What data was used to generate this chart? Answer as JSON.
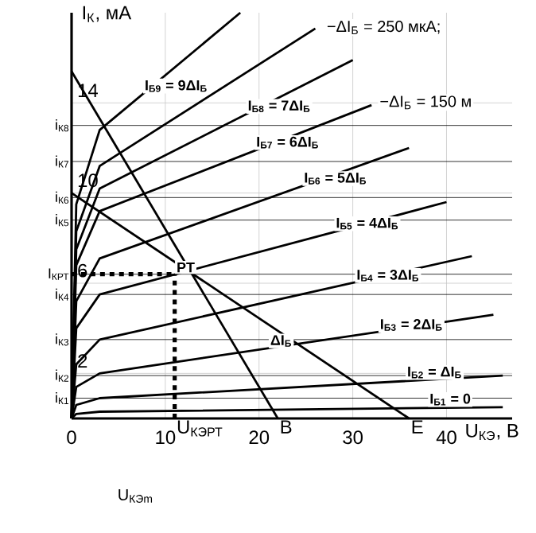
{
  "chart_data": {
    "type": "line",
    "xlabel": "U$_{КЭ}$, В",
    "ylabel": "I$_{К}$, мА",
    "xlim": [
      0,
      47
    ],
    "ylim": [
      0,
      18
    ],
    "xticks": [
      0,
      10,
      20,
      30,
      40
    ],
    "yticks": [
      2,
      6,
      10,
      14
    ],
    "ref_lines": [
      {
        "axis": "y",
        "value": 0.9,
        "label": "i$_{К1}$"
      },
      {
        "axis": "y",
        "value": 1.9,
        "label": "i$_{К2}$"
      },
      {
        "axis": "y",
        "value": 3.5,
        "label": "i$_{К3}$"
      },
      {
        "axis": "y",
        "value": 5.5,
        "label": "i$_{К4}$"
      },
      {
        "axis": "y",
        "value": 6.4,
        "label": "I$_{КРТ}$"
      },
      {
        "axis": "y",
        "value": 8.8,
        "label": "i$_{К5}$"
      },
      {
        "axis": "y",
        "value": 9.8,
        "label": "i$_{К6}$"
      },
      {
        "axis": "y",
        "value": 11.4,
        "label": "i$_{К7}$"
      },
      {
        "axis": "y",
        "value": 13.0,
        "label": "i$_{К8}$"
      }
    ],
    "grid": true,
    "series": [
      {
        "x": [
          0,
          0.5,
          3,
          46
        ],
        "values": [
          0,
          0.2,
          0.3,
          0.5
        ],
        "color": "#000000"
      },
      {
        "x": [
          0,
          0.5,
          3,
          46
        ],
        "values": [
          0,
          0.6,
          0.9,
          1.9
        ],
        "color": "#000000"
      },
      {
        "x": [
          0,
          0.5,
          3,
          45
        ],
        "values": [
          0,
          1.4,
          2.0,
          4.6
        ],
        "color": "#000000"
      },
      {
        "x": [
          0,
          0.5,
          3,
          42.7
        ],
        "values": [
          0,
          2.4,
          3.5,
          7.2
        ],
        "color": "#000000"
      },
      {
        "x": [
          0,
          0.5,
          3,
          40
        ],
        "values": [
          0,
          4.0,
          5.5,
          9.6
        ],
        "color": "#000000"
      },
      {
        "x": [
          0,
          0.5,
          3,
          36
        ],
        "values": [
          0,
          5.2,
          7.1,
          12.0
        ],
        "color": "#000000"
      },
      {
        "x": [
          0,
          0.5,
          3,
          32
        ],
        "values": [
          0,
          6.8,
          9.2,
          13.9
        ],
        "color": "#000000"
      },
      {
        "x": [
          0,
          0.5,
          3,
          30
        ],
        "values": [
          0,
          7.5,
          10.2,
          15.9
        ],
        "color": "#000000"
      },
      {
        "x": [
          0,
          0.5,
          3,
          26
        ],
        "values": [
          0,
          8.3,
          11.2,
          17.3
        ],
        "color": "#000000"
      },
      {
        "x": [
          0,
          0.5,
          3,
          18
        ],
        "values": [
          0,
          9.5,
          12.8,
          18
        ],
        "color": "#000000"
      },
      {
        "x": [
          0,
          22
        ],
        "values": [
          15.4,
          0
        ],
        "color": "#000000"
      },
      {
        "x": [
          0,
          36
        ],
        "values": [
          10.0,
          0
        ],
        "color": "#000000"
      },
      {
        "x": [
          0,
          11
        ],
        "values": [
          6.4,
          6.4
        ],
        "color": "#000000",
        "line_style": "dashed"
      },
      {
        "x": [
          11,
          11
        ],
        "values": [
          0,
          6.4
        ],
        "color": "#000000",
        "line_style": "dashed"
      }
    ],
    "annotations": [
      {
        "text": "I$_{Б1}$ = 0",
        "x": 38,
        "y": 0.5
      },
      {
        "text": "I$_{Б2}$ = ΔI$_{Б}$",
        "x": 35.6,
        "y": 1.7
      },
      {
        "text": "I$_{Б3}$ = 2ΔI$_{Б}$",
        "x": 32.7,
        "y": 3.8
      },
      {
        "text": "I$_{Б4}$ = 3ΔI$_{Б}$",
        "x": 30.2,
        "y": 6.0
      },
      {
        "text": "I$_{Б5}$ = 4ΔI$_{Б}$",
        "x": 28,
        "y": 8.3
      },
      {
        "text": "I$_{Б6}$ = 5ΔI$_{Б}$",
        "x": 24.6,
        "y": 10.3
      },
      {
        "text": "I$_{Б7}$ = 6ΔI$_{Б}$",
        "x": 19.5,
        "y": 11.9
      },
      {
        "text": "I$_{Б8}$ = 7ΔI$_{Б}$",
        "x": 18.6,
        "y": 13.5
      },
      {
        "text": "I$_{Б9}$ = 9ΔI$_{Б}$",
        "x": 7.6,
        "y": 14.4
      },
      {
        "text": "ΔI$_{Б}$",
        "x": 21,
        "y": 3.1
      },
      {
        "text": "PT",
        "x": 11,
        "y": 6.4
      },
      {
        "text": "B",
        "x": 22,
        "y": 0
      },
      {
        "text": "E",
        "x": 36,
        "y": 0
      },
      {
        "text": "U$_{КЭРТ}$",
        "x": 11,
        "y": 0
      },
      "−ΔI$_{Б}$ = 250 мкА;",
      "−ΔI$_{Б}$ = 150 м",
      "U$_{КЭm}$"
    ]
  }
}
